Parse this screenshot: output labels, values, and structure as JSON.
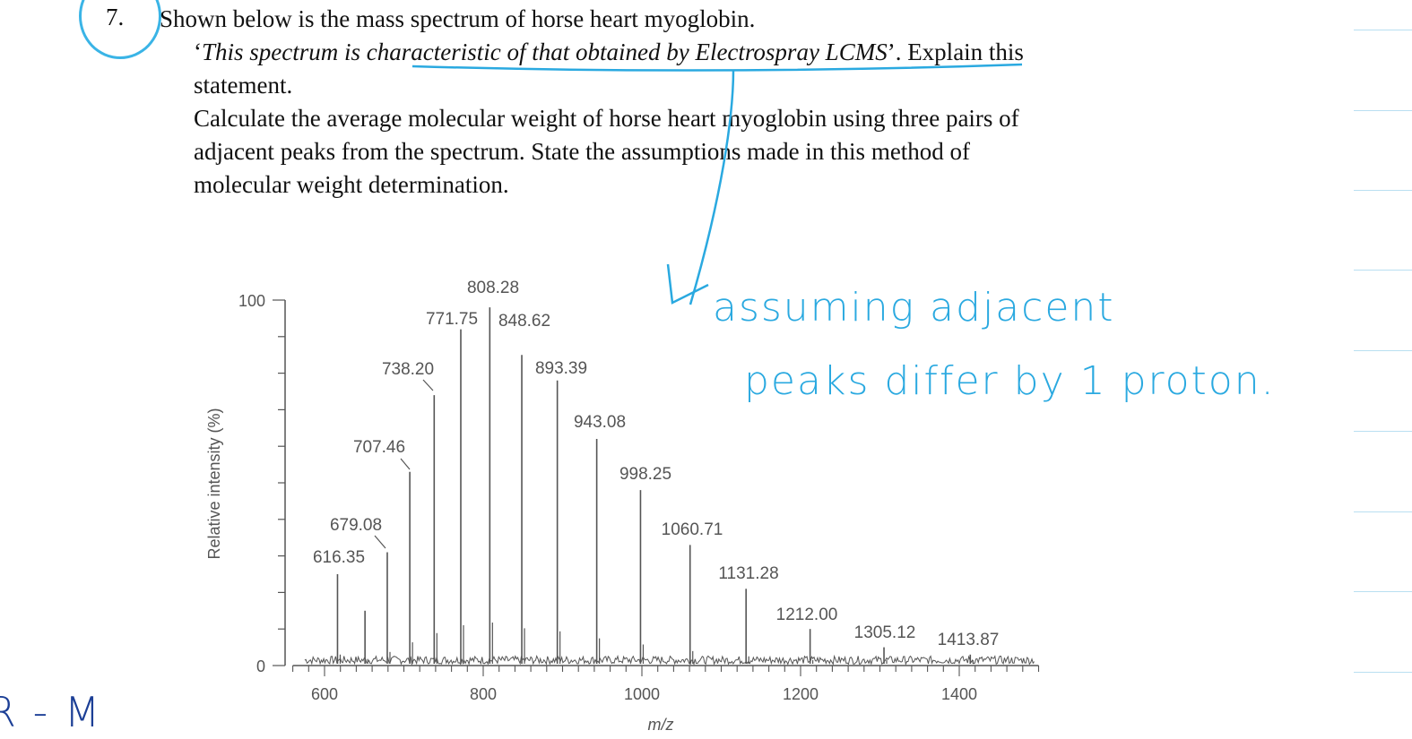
{
  "question": {
    "number": "7.",
    "line1": "Shown below is the mass spectrum of horse heart myoglobin.",
    "line2_quote_open": "‘",
    "line2_italic": "This spectrum is characteristic of that obtained by Electrospray LCMS",
    "line2_quote_close": "’. Explain this",
    "line3": "statement.",
    "line4": "Calculate the average molecular weight of horse heart myoglobin using three pairs of",
    "line5": "adjacent peaks from the spectrum. State the assumptions made in this method of",
    "line6": "molecular weight determination."
  },
  "handwriting": {
    "note_line1": "assuming adjacent",
    "note_line2": "peaks differ by 1 proton.",
    "bottom_left": "R - M",
    "ink_color": "#2aa9e0",
    "bottom_ink_color": "#1c3f96"
  },
  "chart_data": {
    "type": "line",
    "title": "",
    "xlabel": "m/z",
    "ylabel": "Relative intensity (%)",
    "xlim": [
      560,
      1500
    ],
    "ylim": [
      0,
      100
    ],
    "x_ticks": [
      600,
      800,
      1000,
      1200,
      1400
    ],
    "y_ticks": [
      0,
      100
    ],
    "grid": false,
    "color": "#555555",
    "peaks": [
      {
        "mz": 616.35,
        "intensity": 25,
        "label": "616.35"
      },
      {
        "mz": 651.0,
        "intensity": 15,
        "label": ""
      },
      {
        "mz": 679.08,
        "intensity": 31,
        "label": "679.08"
      },
      {
        "mz": 707.46,
        "intensity": 53,
        "label": "707.46"
      },
      {
        "mz": 738.2,
        "intensity": 74,
        "label": "738.20"
      },
      {
        "mz": 771.75,
        "intensity": 92,
        "label": "771.75"
      },
      {
        "mz": 808.28,
        "intensity": 98,
        "label": "808.28"
      },
      {
        "mz": 848.62,
        "intensity": 85,
        "label": "848.62"
      },
      {
        "mz": 893.39,
        "intensity": 78,
        "label": "893.39"
      },
      {
        "mz": 943.08,
        "intensity": 62,
        "label": "943.08"
      },
      {
        "mz": 998.25,
        "intensity": 48,
        "label": "998.25"
      },
      {
        "mz": 1060.71,
        "intensity": 33,
        "label": "1060.71"
      },
      {
        "mz": 1131.28,
        "intensity": 21,
        "label": "1131.28"
      },
      {
        "mz": 1212.0,
        "intensity": 10,
        "label": "1212.00"
      },
      {
        "mz": 1305.12,
        "intensity": 5,
        "label": "1305.12"
      },
      {
        "mz": 1413.87,
        "intensity": 3,
        "label": "1413.87"
      }
    ]
  }
}
